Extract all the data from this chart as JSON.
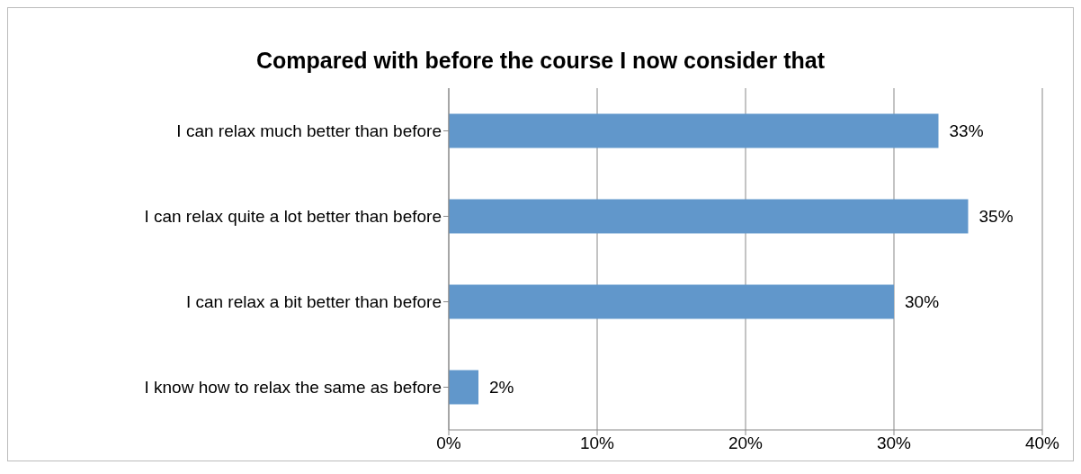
{
  "chart_data": {
    "type": "bar",
    "orientation": "horizontal",
    "title": "Compared with before the course I now consider that",
    "categories": [
      "I can relax much better than before",
      "I can relax quite a lot better than before",
      "I can relax a bit better than before",
      "I know how to relax the same as before"
    ],
    "values": [
      33,
      35,
      30,
      2
    ],
    "value_labels": [
      "33%",
      "35%",
      "30%",
      "2%"
    ],
    "color": "#6197cb",
    "xlim": [
      0,
      40
    ],
    "xticks": [
      {
        "value": 0,
        "label": "0%"
      },
      {
        "value": 10,
        "label": "10%"
      },
      {
        "value": 20,
        "label": "20%"
      },
      {
        "value": 30,
        "label": "30%"
      },
      {
        "value": 40,
        "label": "40%"
      }
    ],
    "grid": "x",
    "legend": false
  }
}
